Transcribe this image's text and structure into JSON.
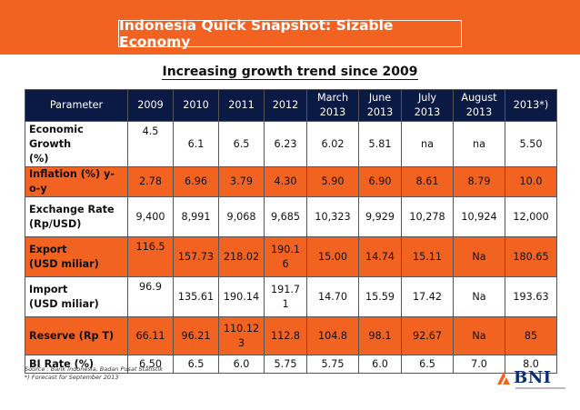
{
  "title": "Indonesia Quick Snapshot: Sizable Economy",
  "subtitle": "Increasing growth trend since 2009",
  "columns": [
    [
      "Parameter"
    ],
    [
      "2009"
    ],
    [
      "2010"
    ],
    [
      "2011"
    ],
    [
      "2012"
    ],
    [
      "March",
      "2013"
    ],
    [
      "June",
      "2013"
    ],
    [
      "July",
      "2013"
    ],
    [
      "August",
      "2013"
    ],
    [
      "2013*)"
    ]
  ],
  "rows": [
    {
      "label": [
        "Economic Growth",
        "(%)"
      ],
      "values": [
        "4.5",
        "6.1",
        "6.5",
        "6.23",
        "6.02",
        "5.81",
        "na",
        "na",
        "5.50"
      ],
      "highlight": false,
      "topfirst": true
    },
    {
      "label": [
        "Inflation (%) y-o-y"
      ],
      "values": [
        "2.78",
        "6.96",
        "3.79",
        "4.30",
        "5.90",
        "6.90",
        "8.61",
        "8.79",
        "10.0"
      ],
      "highlight": true,
      "topfirst": false
    },
    {
      "label": [
        "Exchange Rate",
        "(Rp/USD)"
      ],
      "values": [
        "9,400",
        "8,991",
        "9,068",
        "9,685",
        "10,323",
        "9,929",
        "10,278",
        "10,924",
        "12,000"
      ],
      "highlight": false,
      "topfirst": false
    },
    {
      "label": [
        "Export",
        "(USD miliar)"
      ],
      "values": [
        "116.5",
        "157.73",
        "218.02",
        "190.1\n6",
        "15.00",
        "14.74",
        "15.11",
        "Na",
        "180.65"
      ],
      "highlight": true,
      "topfirst": true
    },
    {
      "label": [
        "Import",
        "(USD miliar)"
      ],
      "values": [
        "96.9",
        "135.61",
        "190.14",
        "191.7\n1",
        "14.70",
        "15.59",
        "17.42",
        "Na",
        "193.63"
      ],
      "highlight": false,
      "topfirst": true
    },
    {
      "label": [
        "Reserve (Rp T)"
      ],
      "values": [
        "66.11",
        "96.21",
        "110.12\n3",
        "112.8",
        "104.8",
        "98.1",
        "92.67",
        "Na",
        "85"
      ],
      "highlight": true,
      "topfirst": false
    },
    {
      "label": [
        "BI Rate (%)"
      ],
      "values": [
        "6.50",
        "6.5",
        "6.0",
        "5.75",
        "5.75",
        "6.0",
        "6.5",
        "7.0",
        "8.0"
      ],
      "highlight": false,
      "topfirst": false
    }
  ],
  "footnotes": [
    "Source : Bank Indonesia, Badan Pusat Statistik",
    "*) Forecast for September 2013"
  ],
  "logo_text": "BNI",
  "colors": {
    "banner": "#f26322",
    "header": "#0b1a44",
    "highlight": "#f26322",
    "logo": "#0b2f6e"
  }
}
